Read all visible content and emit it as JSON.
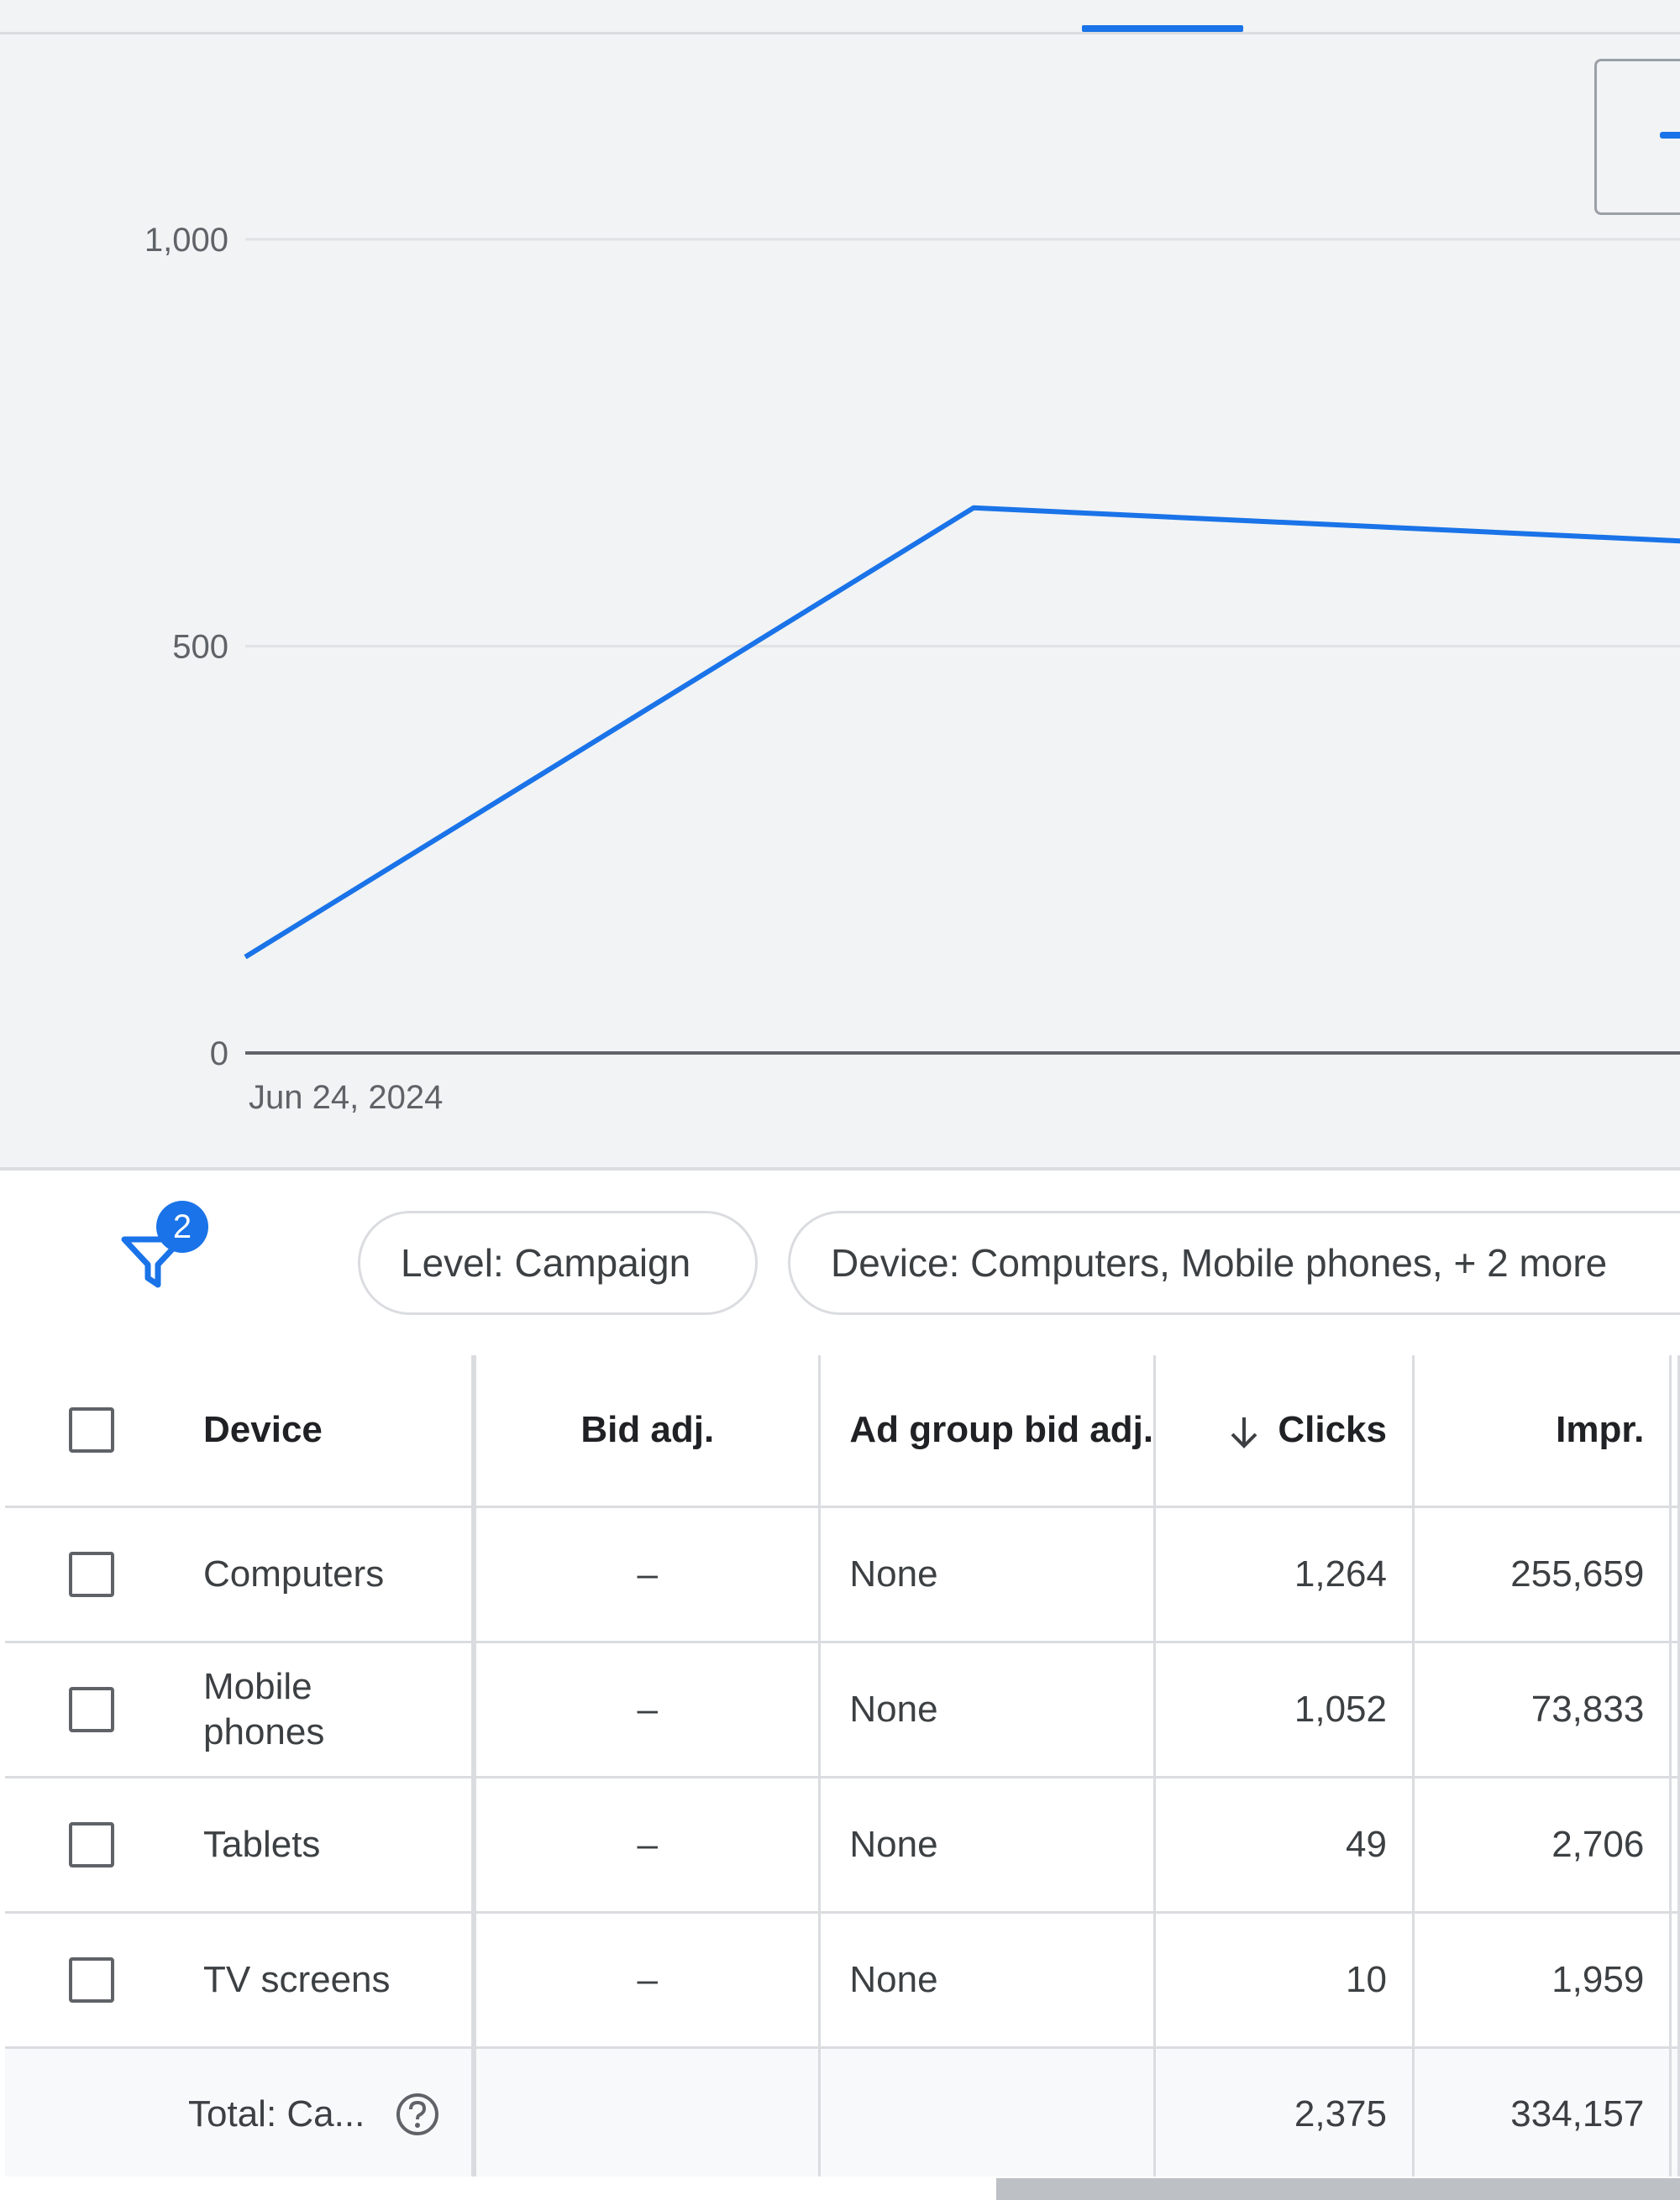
{
  "chart_data": {
    "type": "line",
    "x": [
      "Jun 24, 2024",
      "",
      ""
    ],
    "series": [
      {
        "values": [
          118,
          670,
          628
        ]
      }
    ],
    "y_ticks": [
      "0",
      "500",
      "1,000"
    ],
    "x_tick_labels": [
      "Jun 24, 2024"
    ],
    "ylim": [
      0,
      1000
    ],
    "grid": true,
    "color": "#1a73e8"
  },
  "filters": {
    "badge_count": "2",
    "chips": [
      {
        "label": "Level: Campaign"
      },
      {
        "label": "Device: Computers, Mobile phones, + 2 more"
      }
    ]
  },
  "table": {
    "headers": {
      "device": "Device",
      "bid_adj": "Bid adj.",
      "ad_group_bid_adj": "Ad group bid adj.",
      "clicks": "Clicks",
      "impr": "Impr."
    },
    "rows": [
      {
        "device": "Computers",
        "bid_adj": "–",
        "ad_group_bid_adj": "None",
        "clicks": "1,264",
        "impr": "255,659"
      },
      {
        "device": "Mobile phones",
        "bid_adj": "–",
        "ad_group_bid_adj": "None",
        "clicks": "1,052",
        "impr": "73,833"
      },
      {
        "device": "Tablets",
        "bid_adj": "–",
        "ad_group_bid_adj": "None",
        "clicks": "49",
        "impr": "2,706"
      },
      {
        "device": "TV screens",
        "bid_adj": "–",
        "ad_group_bid_adj": "None",
        "clicks": "10",
        "impr": "1,959"
      }
    ],
    "total": {
      "label": "Total: Ca...",
      "clicks": "2,375",
      "impr": "334,157"
    }
  },
  "icons": {
    "filter": "filter-icon",
    "sort": "arrow-down-icon",
    "help": "help-circle-icon",
    "checkbox": "checkbox-icon"
  },
  "colors": {
    "accent": "#1a73e8",
    "grid": "#dadce0",
    "text": "#3c4043"
  }
}
